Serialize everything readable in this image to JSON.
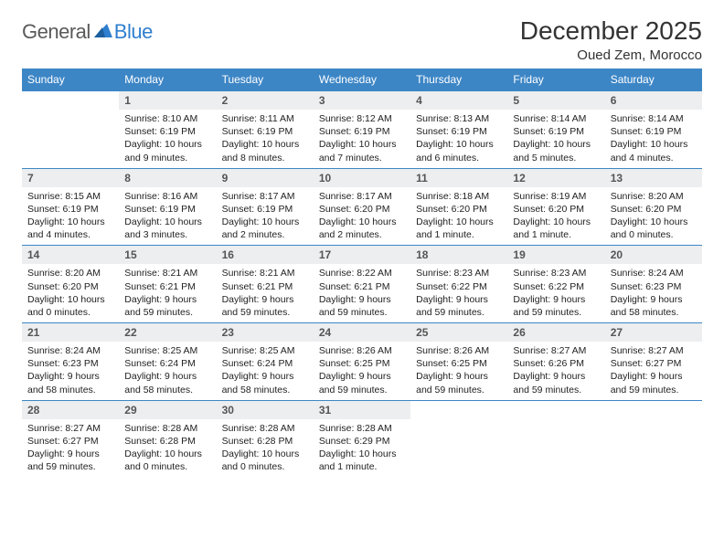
{
  "logo": {
    "text1": "General",
    "text2": "Blue"
  },
  "title": "December 2025",
  "subtitle": "Oued Zem, Morocco",
  "colors": {
    "header_bg": "#3d86c6",
    "daynum_bg": "#eceeef",
    "logo_gray": "#5a5a5a",
    "logo_blue": "#2f7fcf",
    "border": "#3d86c6"
  },
  "fonts": {
    "title_pt": 28,
    "subtitle_pt": 15,
    "header_pt": 12,
    "daynum_pt": 12,
    "body_pt": 10.5
  },
  "weekdays": [
    "Sunday",
    "Monday",
    "Tuesday",
    "Wednesday",
    "Thursday",
    "Friday",
    "Saturday"
  ],
  "weeks": [
    [
      {
        "n": "",
        "sr": "",
        "ss": "",
        "dl": ""
      },
      {
        "n": "1",
        "sr": "Sunrise: 8:10 AM",
        "ss": "Sunset: 6:19 PM",
        "dl": "Daylight: 10 hours and 9 minutes."
      },
      {
        "n": "2",
        "sr": "Sunrise: 8:11 AM",
        "ss": "Sunset: 6:19 PM",
        "dl": "Daylight: 10 hours and 8 minutes."
      },
      {
        "n": "3",
        "sr": "Sunrise: 8:12 AM",
        "ss": "Sunset: 6:19 PM",
        "dl": "Daylight: 10 hours and 7 minutes."
      },
      {
        "n": "4",
        "sr": "Sunrise: 8:13 AM",
        "ss": "Sunset: 6:19 PM",
        "dl": "Daylight: 10 hours and 6 minutes."
      },
      {
        "n": "5",
        "sr": "Sunrise: 8:14 AM",
        "ss": "Sunset: 6:19 PM",
        "dl": "Daylight: 10 hours and 5 minutes."
      },
      {
        "n": "6",
        "sr": "Sunrise: 8:14 AM",
        "ss": "Sunset: 6:19 PM",
        "dl": "Daylight: 10 hours and 4 minutes."
      }
    ],
    [
      {
        "n": "7",
        "sr": "Sunrise: 8:15 AM",
        "ss": "Sunset: 6:19 PM",
        "dl": "Daylight: 10 hours and 4 minutes."
      },
      {
        "n": "8",
        "sr": "Sunrise: 8:16 AM",
        "ss": "Sunset: 6:19 PM",
        "dl": "Daylight: 10 hours and 3 minutes."
      },
      {
        "n": "9",
        "sr": "Sunrise: 8:17 AM",
        "ss": "Sunset: 6:19 PM",
        "dl": "Daylight: 10 hours and 2 minutes."
      },
      {
        "n": "10",
        "sr": "Sunrise: 8:17 AM",
        "ss": "Sunset: 6:20 PM",
        "dl": "Daylight: 10 hours and 2 minutes."
      },
      {
        "n": "11",
        "sr": "Sunrise: 8:18 AM",
        "ss": "Sunset: 6:20 PM",
        "dl": "Daylight: 10 hours and 1 minute."
      },
      {
        "n": "12",
        "sr": "Sunrise: 8:19 AM",
        "ss": "Sunset: 6:20 PM",
        "dl": "Daylight: 10 hours and 1 minute."
      },
      {
        "n": "13",
        "sr": "Sunrise: 8:20 AM",
        "ss": "Sunset: 6:20 PM",
        "dl": "Daylight: 10 hours and 0 minutes."
      }
    ],
    [
      {
        "n": "14",
        "sr": "Sunrise: 8:20 AM",
        "ss": "Sunset: 6:20 PM",
        "dl": "Daylight: 10 hours and 0 minutes."
      },
      {
        "n": "15",
        "sr": "Sunrise: 8:21 AM",
        "ss": "Sunset: 6:21 PM",
        "dl": "Daylight: 9 hours and 59 minutes."
      },
      {
        "n": "16",
        "sr": "Sunrise: 8:21 AM",
        "ss": "Sunset: 6:21 PM",
        "dl": "Daylight: 9 hours and 59 minutes."
      },
      {
        "n": "17",
        "sr": "Sunrise: 8:22 AM",
        "ss": "Sunset: 6:21 PM",
        "dl": "Daylight: 9 hours and 59 minutes."
      },
      {
        "n": "18",
        "sr": "Sunrise: 8:23 AM",
        "ss": "Sunset: 6:22 PM",
        "dl": "Daylight: 9 hours and 59 minutes."
      },
      {
        "n": "19",
        "sr": "Sunrise: 8:23 AM",
        "ss": "Sunset: 6:22 PM",
        "dl": "Daylight: 9 hours and 59 minutes."
      },
      {
        "n": "20",
        "sr": "Sunrise: 8:24 AM",
        "ss": "Sunset: 6:23 PM",
        "dl": "Daylight: 9 hours and 58 minutes."
      }
    ],
    [
      {
        "n": "21",
        "sr": "Sunrise: 8:24 AM",
        "ss": "Sunset: 6:23 PM",
        "dl": "Daylight: 9 hours and 58 minutes."
      },
      {
        "n": "22",
        "sr": "Sunrise: 8:25 AM",
        "ss": "Sunset: 6:24 PM",
        "dl": "Daylight: 9 hours and 58 minutes."
      },
      {
        "n": "23",
        "sr": "Sunrise: 8:25 AM",
        "ss": "Sunset: 6:24 PM",
        "dl": "Daylight: 9 hours and 58 minutes."
      },
      {
        "n": "24",
        "sr": "Sunrise: 8:26 AM",
        "ss": "Sunset: 6:25 PM",
        "dl": "Daylight: 9 hours and 59 minutes."
      },
      {
        "n": "25",
        "sr": "Sunrise: 8:26 AM",
        "ss": "Sunset: 6:25 PM",
        "dl": "Daylight: 9 hours and 59 minutes."
      },
      {
        "n": "26",
        "sr": "Sunrise: 8:27 AM",
        "ss": "Sunset: 6:26 PM",
        "dl": "Daylight: 9 hours and 59 minutes."
      },
      {
        "n": "27",
        "sr": "Sunrise: 8:27 AM",
        "ss": "Sunset: 6:27 PM",
        "dl": "Daylight: 9 hours and 59 minutes."
      }
    ],
    [
      {
        "n": "28",
        "sr": "Sunrise: 8:27 AM",
        "ss": "Sunset: 6:27 PM",
        "dl": "Daylight: 9 hours and 59 minutes."
      },
      {
        "n": "29",
        "sr": "Sunrise: 8:28 AM",
        "ss": "Sunset: 6:28 PM",
        "dl": "Daylight: 10 hours and 0 minutes."
      },
      {
        "n": "30",
        "sr": "Sunrise: 8:28 AM",
        "ss": "Sunset: 6:28 PM",
        "dl": "Daylight: 10 hours and 0 minutes."
      },
      {
        "n": "31",
        "sr": "Sunrise: 8:28 AM",
        "ss": "Sunset: 6:29 PM",
        "dl": "Daylight: 10 hours and 1 minute."
      },
      {
        "n": "",
        "sr": "",
        "ss": "",
        "dl": ""
      },
      {
        "n": "",
        "sr": "",
        "ss": "",
        "dl": ""
      },
      {
        "n": "",
        "sr": "",
        "ss": "",
        "dl": ""
      }
    ]
  ]
}
